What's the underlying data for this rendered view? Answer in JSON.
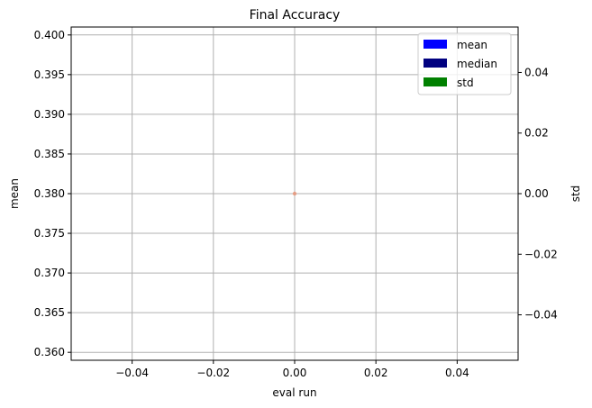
{
  "chart_data": {
    "type": "scatter",
    "title": "Final Accuracy",
    "xlabel": "eval run",
    "ylabel": "mean",
    "y2label": "std",
    "xlim": [
      -0.055,
      0.055
    ],
    "ylim": [
      0.359,
      0.401
    ],
    "y2lim": [
      -0.055,
      0.055
    ],
    "x_ticks": [
      -0.04,
      -0.02,
      0.0,
      0.02,
      0.04
    ],
    "x_tick_labels": [
      "−0.04",
      "−0.02",
      "0.00",
      "0.02",
      "0.04"
    ],
    "y_ticks": [
      0.36,
      0.365,
      0.37,
      0.375,
      0.38,
      0.385,
      0.39,
      0.395,
      0.4
    ],
    "y_tick_labels": [
      "0.360",
      "0.365",
      "0.370",
      "0.375",
      "0.380",
      "0.385",
      "0.390",
      "0.395",
      "0.400"
    ],
    "y2_ticks": [
      -0.04,
      -0.02,
      0.0,
      0.02,
      0.04
    ],
    "y2_tick_labels": [
      "−0.04",
      "−0.02",
      "0.00",
      "0.02",
      "0.04"
    ],
    "grid": true,
    "legend_position": "top-right",
    "legend": [
      {
        "label": "mean",
        "color": "#0000ff"
      },
      {
        "label": "median",
        "color": "#000080"
      },
      {
        "label": "std",
        "color": "#008000"
      }
    ],
    "points": [
      {
        "x": 0.0,
        "y": 0.38,
        "color": "#e9967a"
      }
    ]
  }
}
